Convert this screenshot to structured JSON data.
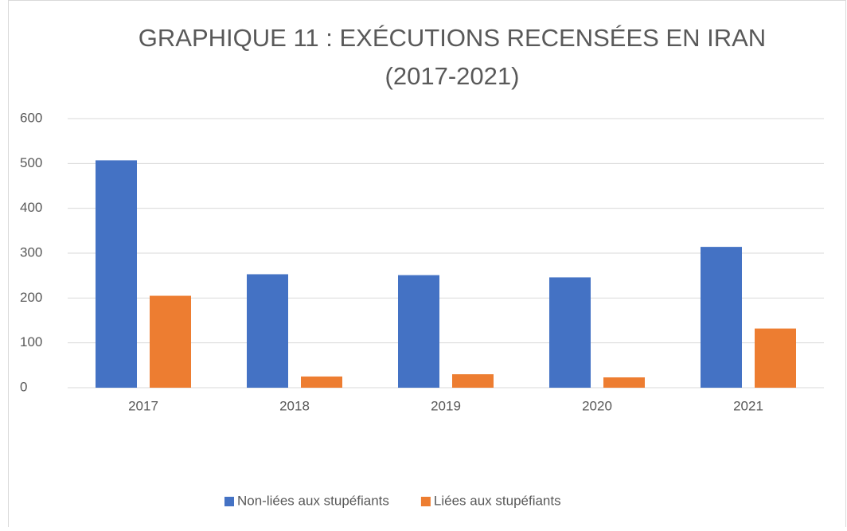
{
  "chart_data": {
    "type": "bar",
    "title": [
      "GRAPHIQUE 11 : EXÉCUTIONS RECENSÉES EN IRAN",
      "(2017-2021)"
    ],
    "categories": [
      "2017",
      "2018",
      "2019",
      "2020",
      "2021"
    ],
    "series": [
      {
        "name": "Non-liées aux stupéfiants",
        "color": "#4472c4",
        "values": [
          507,
          253,
          251,
          246,
          314
        ]
      },
      {
        "name": "Liées aux stupéfiants",
        "color": "#ed7d31",
        "values": [
          205,
          25,
          30,
          23,
          132
        ]
      }
    ],
    "ylim": [
      0,
      600
    ],
    "yticks": [
      0,
      100,
      200,
      300,
      400,
      500,
      600
    ],
    "grid": true,
    "legend": "bottom"
  }
}
